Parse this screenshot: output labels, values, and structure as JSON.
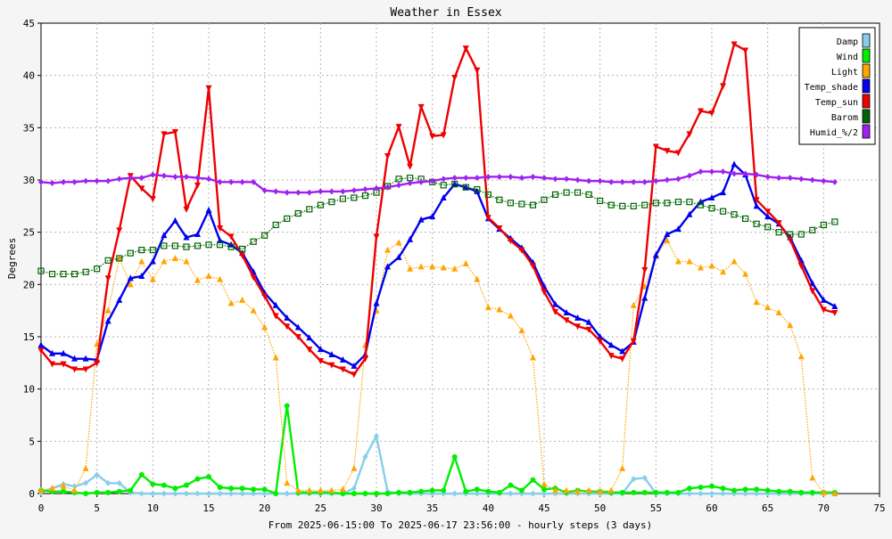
{
  "chart_data": {
    "type": "line",
    "title": "Weather in Essex",
    "xlabel": "From 2025-06-15:00 To 2025-06-17 23:56:00 - hourly steps (3 days)",
    "ylabel": "Degrees",
    "xlim": [
      0,
      75
    ],
    "ylim": [
      0,
      45
    ],
    "xticks": [
      0,
      5,
      10,
      15,
      20,
      25,
      30,
      35,
      40,
      45,
      50,
      55,
      60,
      65,
      70,
      75
    ],
    "yticks": [
      0,
      5,
      10,
      15,
      20,
      25,
      30,
      35,
      40,
      45
    ],
    "grid": true,
    "legend_position": "top-right",
    "series": [
      {
        "name": "Damp",
        "color": "#87ceeb",
        "style": "solid",
        "marker": "diamond",
        "values": [
          0.1,
          0.5,
          0.9,
          0.7,
          1.0,
          1.8,
          1.0,
          1.0,
          0.1,
          0,
          0,
          0,
          0,
          0,
          0,
          0,
          0,
          0,
          0,
          0,
          0,
          0,
          0,
          0,
          0,
          0,
          0,
          0,
          0.5,
          3.5,
          5.5,
          0.2,
          0,
          0,
          0,
          0,
          0,
          0,
          0,
          0,
          0,
          0,
          0,
          0,
          0,
          0,
          0,
          0,
          0,
          0,
          0,
          0,
          0,
          1.4,
          1.5,
          0,
          0,
          0,
          0,
          0,
          0,
          0,
          0,
          0,
          0,
          0,
          0,
          0,
          0,
          0,
          0,
          0
        ]
      },
      {
        "name": "Wind",
        "color": "#00ee00",
        "style": "solid",
        "marker": "circle",
        "values": [
          0.3,
          0.2,
          0.2,
          0.1,
          0,
          0.1,
          0.1,
          0.2,
          0.3,
          1.8,
          0.9,
          0.8,
          0.5,
          0.8,
          1.4,
          1.6,
          0.6,
          0.5,
          0.5,
          0.4,
          0.4,
          0,
          8.4,
          0.1,
          0.1,
          0.1,
          0.1,
          0,
          0,
          0,
          0,
          0,
          0.1,
          0.1,
          0.2,
          0.3,
          0.3,
          3.5,
          0.2,
          0.4,
          0.2,
          0.1,
          0.8,
          0.3,
          1.3,
          0.4,
          0.5,
          0.1,
          0.3,
          0.2,
          0.2,
          0.1,
          0.1,
          0.1,
          0.1,
          0.1,
          0.1,
          0.1,
          0.5,
          0.6,
          0.7,
          0.5,
          0.3,
          0.4,
          0.4,
          0.3,
          0.2,
          0.2,
          0.1,
          0.1,
          0.1,
          0.1
        ]
      },
      {
        "name": "Light",
        "color": "#ffa500",
        "style": "dotted",
        "marker": "triangle",
        "values": [
          0.3,
          0.5,
          0.7,
          0.3,
          2.4,
          14.3,
          17.5,
          22.5,
          20,
          22.2,
          20.5,
          22.2,
          22.5,
          22.2,
          20.4,
          20.8,
          20.5,
          18.2,
          18.5,
          17.5,
          15.9,
          13,
          1,
          0.3,
          0.3,
          0.3,
          0.3,
          0.4,
          2.4,
          14.2,
          17.5,
          23.3,
          24,
          21.5,
          21.7,
          21.7,
          21.6,
          21.5,
          22,
          20.5,
          17.8,
          17.6,
          17,
          15.6,
          13,
          0.9,
          0.3,
          0.3,
          0.2,
          0.3,
          0.2,
          0.3,
          2.4,
          18,
          19.8,
          22.7,
          24.2,
          22.2,
          22.2,
          21.6,
          21.8,
          21.2,
          22.2,
          21,
          18.3,
          17.8,
          17.3,
          16.1,
          13.1,
          1.5,
          0.1,
          0
        ]
      },
      {
        "name": "Temp_shade",
        "color": "#0000ee",
        "style": "solid",
        "marker": "triangle",
        "values": [
          14.2,
          13.4,
          13.4,
          12.9,
          12.9,
          12.8,
          16.5,
          18.5,
          20.6,
          20.8,
          22.2,
          24.7,
          26.1,
          24.5,
          24.8,
          27.1,
          24.2,
          23.8,
          23,
          21.2,
          19.2,
          18,
          16.8,
          15.9,
          14.9,
          13.8,
          13.3,
          12.8,
          12.2,
          13.3,
          18.2,
          21.7,
          22.6,
          24.3,
          26.2,
          26.5,
          28.3,
          29.6,
          29.3,
          28.9,
          26.3,
          25.3,
          24.4,
          23.5,
          22.1,
          19.8,
          18.1,
          17.3,
          16.8,
          16.4,
          15,
          14.2,
          13.6,
          14.5,
          18.7,
          22.8,
          24.8,
          25.3,
          26.7,
          27.9,
          28.3,
          28.8,
          31.5,
          30.5,
          27.5,
          26.5,
          25.8,
          24.5,
          22.3,
          20.1,
          18.5,
          17.9
        ]
      },
      {
        "name": "Temp_sun",
        "color": "#ee0000",
        "style": "solid",
        "marker": "triangle-down",
        "values": [
          13.7,
          12.4,
          12.4,
          11.9,
          11.9,
          12.5,
          20.6,
          25.2,
          30.4,
          29.2,
          28.2,
          34.4,
          34.6,
          27.2,
          29.5,
          38.8,
          25.4,
          24.6,
          22.8,
          20.7,
          18.9,
          17,
          16,
          15,
          13.8,
          12.7,
          12.3,
          11.9,
          11.4,
          12.9,
          24.6,
          32.3,
          35.1,
          31.3,
          37,
          34.2,
          34.3,
          39.8,
          42.6,
          40.5,
          26.4,
          25.4,
          24.2,
          23.3,
          21.8,
          19.3,
          17.4,
          16.6,
          16,
          15.7,
          14.6,
          13.2,
          12.9,
          14.6,
          21.4,
          33.2,
          32.8,
          32.6,
          34.4,
          36.6,
          36.4,
          39,
          43,
          42.4,
          28.1,
          27,
          25.9,
          24.3,
          21.8,
          19.4,
          17.6,
          17.3
        ]
      },
      {
        "name": "Barom",
        "color": "#006400",
        "style": "dotted",
        "marker": "square",
        "values": [
          21.3,
          21,
          21,
          21,
          21.2,
          21.5,
          22.3,
          22.5,
          23,
          23.3,
          23.3,
          23.7,
          23.7,
          23.6,
          23.7,
          23.8,
          23.8,
          23.6,
          23.4,
          24.1,
          24.7,
          25.7,
          26.3,
          26.8,
          27.2,
          27.6,
          27.9,
          28.2,
          28.3,
          28.5,
          28.8,
          29.4,
          30.1,
          30.2,
          30.1,
          29.8,
          29.5,
          29.6,
          29.3,
          29.1,
          28.6,
          28.1,
          27.8,
          27.7,
          27.6,
          28.1,
          28.6,
          28.8,
          28.8,
          28.6,
          28,
          27.6,
          27.5,
          27.5,
          27.6,
          27.8,
          27.8,
          27.9,
          27.9,
          27.6,
          27.3,
          27,
          26.7,
          26.3,
          25.8,
          25.5,
          25,
          24.8,
          24.8,
          25.2,
          25.7,
          26
        ]
      },
      {
        "name": "Humid_%/2",
        "color": "#a020f0",
        "style": "solid",
        "marker": "diamond",
        "values": [
          29.8,
          29.7,
          29.8,
          29.8,
          29.9,
          29.9,
          29.9,
          30.1,
          30.2,
          30.2,
          30.5,
          30.4,
          30.3,
          30.3,
          30.2,
          30.1,
          29.8,
          29.8,
          29.8,
          29.8,
          29,
          28.9,
          28.8,
          28.8,
          28.8,
          28.9,
          28.9,
          28.9,
          29,
          29.1,
          29.2,
          29.3,
          29.5,
          29.7,
          29.8,
          29.9,
          30.1,
          30.2,
          30.2,
          30.2,
          30.3,
          30.3,
          30.3,
          30.2,
          30.3,
          30.2,
          30.1,
          30.1,
          30,
          29.9,
          29.9,
          29.8,
          29.8,
          29.8,
          29.8,
          29.9,
          30,
          30.1,
          30.4,
          30.8,
          30.8,
          30.8,
          30.6,
          30.6,
          30.5,
          30.3,
          30.2,
          30.2,
          30.1,
          30,
          29.9,
          29.8
        ]
      }
    ]
  }
}
